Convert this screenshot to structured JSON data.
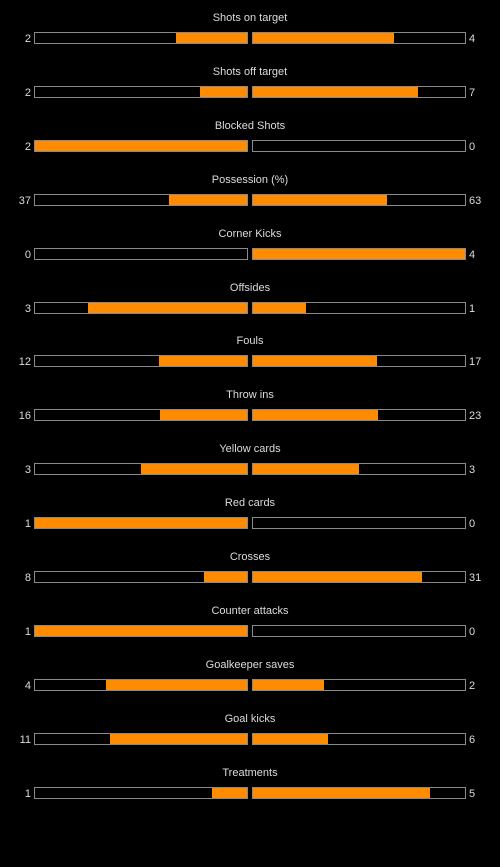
{
  "colors": {
    "fill": "#ff8c00",
    "background": "#000000",
    "border": "#8a8a8a",
    "text": "#dcdcdc"
  },
  "stats": [
    {
      "label": "Shots on target",
      "home": "2",
      "away": "4",
      "home_share": 0.333,
      "away_share": 0.667
    },
    {
      "label": "Shots off target",
      "home": "2",
      "away": "7",
      "home_share": 0.222,
      "away_share": 0.778
    },
    {
      "label": "Blocked Shots",
      "home": "2",
      "away": "0",
      "home_share": 1.0,
      "away_share": 0.0
    },
    {
      "label": "Possession (%)",
      "home": "37",
      "away": "63",
      "home_share": 0.37,
      "away_share": 0.63
    },
    {
      "label": "Corner Kicks",
      "home": "0",
      "away": "4",
      "home_share": 0.0,
      "away_share": 1.0
    },
    {
      "label": "Offsides",
      "home": "3",
      "away": "1",
      "home_share": 0.75,
      "away_share": 0.25
    },
    {
      "label": "Fouls",
      "home": "12",
      "away": "17",
      "home_share": 0.414,
      "away_share": 0.586
    },
    {
      "label": "Throw ins",
      "home": "16",
      "away": "23",
      "home_share": 0.41,
      "away_share": 0.59
    },
    {
      "label": "Yellow cards",
      "home": "3",
      "away": "3",
      "home_share": 0.5,
      "away_share": 0.5
    },
    {
      "label": "Red cards",
      "home": "1",
      "away": "0",
      "home_share": 1.0,
      "away_share": 0.0
    },
    {
      "label": "Crosses",
      "home": "8",
      "away": "31",
      "home_share": 0.205,
      "away_share": 0.795
    },
    {
      "label": "Counter attacks",
      "home": "1",
      "away": "0",
      "home_share": 1.0,
      "away_share": 0.0
    },
    {
      "label": "Goalkeeper saves",
      "home": "4",
      "away": "2",
      "home_share": 0.667,
      "away_share": 0.333
    },
    {
      "label": "Goal kicks",
      "home": "11",
      "away": "6",
      "home_share": 0.647,
      "away_share": 0.353
    },
    {
      "label": "Treatments",
      "home": "1",
      "away": "5",
      "home_share": 0.167,
      "away_share": 0.833
    }
  ]
}
